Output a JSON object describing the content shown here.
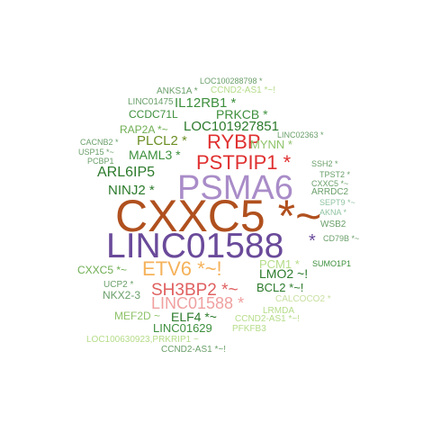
{
  "words": [
    {
      "text": "LOC100288798 *",
      "color": "#6a9f6a"
    },
    {
      "text": "ANKS1A *",
      "color": "#6a9f6a"
    },
    {
      "text": "CCND2-AS1 *~!",
      "color": "#b5dc88"
    },
    {
      "text": "LINC01475",
      "color": "#6a9f6a"
    },
    {
      "text": "IL12RB1 *",
      "color": "#3d8f3d"
    },
    {
      "text": "CCDC71L",
      "color": "#3d8f3d"
    },
    {
      "text": "PRKCB *",
      "color": "#3d8f3d"
    },
    {
      "text": "LOC101927851",
      "color": "#2b7a2b"
    },
    {
      "text": "RAP2A *~",
      "color": "#6fae52"
    },
    {
      "text": "LINC02363 *",
      "color": "#6a9f6a"
    },
    {
      "text": "CACNB2 *",
      "color": "#6a9f6a"
    },
    {
      "text": "PLCL2 *",
      "color": "#6b8e23"
    },
    {
      "text": "RYBP",
      "color": "#e03030"
    },
    {
      "text": "MYNN *",
      "color": "#8fc36a"
    },
    {
      "text": "USP15 *~",
      "color": "#6a9f6a"
    },
    {
      "text": "PCBP1",
      "color": "#6a9f6a"
    },
    {
      "text": "MAML3 *",
      "color": "#3d8f3d"
    },
    {
      "text": "PSTPIP1 *",
      "color": "#e03030"
    },
    {
      "text": "SSH2 *",
      "color": "#6a9f6a"
    },
    {
      "text": "ARL6IP5",
      "color": "#2b7a2b"
    },
    {
      "text": "TPST2 *",
      "color": "#6a9f6a"
    },
    {
      "text": "CXXC5 *~",
      "color": "#6a9f6a"
    },
    {
      "text": "PSMA6",
      "color": "#a98cc8"
    },
    {
      "text": "NINJ2 *",
      "color": "#2b7a2b"
    },
    {
      "text": "ARRDC2",
      "color": "#6a9f6a"
    },
    {
      "text": "SEPT9 *~",
      "color": "#8fc3a0"
    },
    {
      "text": "AKNA *",
      "color": "#8fc3a0"
    },
    {
      "text": "CXXC5 *~",
      "color": "#b0501e"
    },
    {
      "text": "WSB2",
      "color": "#6a9f6a"
    },
    {
      "text": "LINC01588",
      "color": "#6a4a9a"
    },
    {
      "text": "*",
      "color": "#6a4a9a"
    },
    {
      "text": "CD79B *~",
      "color": "#6a9f6a"
    },
    {
      "text": "SUMO1P1",
      "color": "#3d8f3d"
    },
    {
      "text": "CXXC5 *~",
      "color": "#6fae52"
    },
    {
      "text": "ETV6 *~!",
      "color": "#f5b25a"
    },
    {
      "text": "PCM1 *",
      "color": "#b5dc88"
    },
    {
      "text": "LMO2 ~!",
      "color": "#2b7a2b"
    },
    {
      "text": "UCP2 *",
      "color": "#6a9f6a"
    },
    {
      "text": "SH3BP2 *~",
      "color": "#e06060"
    },
    {
      "text": "BCL2 *~!",
      "color": "#2b7a2b"
    },
    {
      "text": "NKX2-3",
      "color": "#6a9f6a"
    },
    {
      "text": "LINC01588 *",
      "color": "#f0a0a0"
    },
    {
      "text": "CALCOCO2 *",
      "color": "#c8e0a0"
    },
    {
      "text": "LRMDA",
      "color": "#b5dc88"
    },
    {
      "text": "MEF2D ~",
      "color": "#8fc36a"
    },
    {
      "text": "ELF4 *~",
      "color": "#2b7a2b"
    },
    {
      "text": "CCND2-AS1 *~!",
      "color": "#b5dc88"
    },
    {
      "text": "LINC01629",
      "color": "#3d8f3d"
    },
    {
      "text": "PFKFB3",
      "color": "#b5dc88"
    },
    {
      "text": "LOC100630923,PRKRIP1 ~",
      "color": "#b5dc88"
    },
    {
      "text": "CCND2-AS1 *~!",
      "color": "#6a9f6a"
    }
  ]
}
